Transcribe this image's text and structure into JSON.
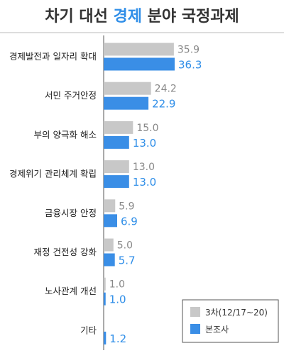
{
  "title": {
    "part1": "차기 대선 ",
    "highlight": "경제",
    "part2": " 분야 국정과제"
  },
  "colors": {
    "title": "#333333",
    "highlight": "#2f8ee8",
    "prev_bar": "#c8c8c8",
    "cur_bar": "#3a8ee6",
    "prev_text": "#888888",
    "cur_text": "#2f8ee8"
  },
  "chart_data": {
    "type": "bar",
    "orientation": "horizontal",
    "categories": [
      "경제발전과 일자리 확대",
      "서민 주거안정",
      "부의 양극화 해소",
      "경제위기 관리체계 확립",
      "금융시장 안정",
      "재정 건전성 강화",
      "노사관계 개선",
      "기타"
    ],
    "series": [
      {
        "name": "3차(12/17~20)",
        "values": [
          35.9,
          24.2,
          15.0,
          13.0,
          5.9,
          5.0,
          1.0,
          null
        ],
        "labels": [
          "35.9",
          "24.2",
          "15.0",
          "13.0",
          "5.9",
          "5.0",
          "1.0",
          ""
        ]
      },
      {
        "name": "본조사",
        "values": [
          36.3,
          22.9,
          13.0,
          13.0,
          6.9,
          5.7,
          1.0,
          1.2
        ],
        "labels": [
          "36.3",
          "22.9",
          "13.0",
          "13.0",
          "6.9",
          "5.7",
          "1.0",
          "1.2"
        ]
      }
    ],
    "xlim": [
      0,
      40
    ],
    "legend": "bottom-right"
  }
}
